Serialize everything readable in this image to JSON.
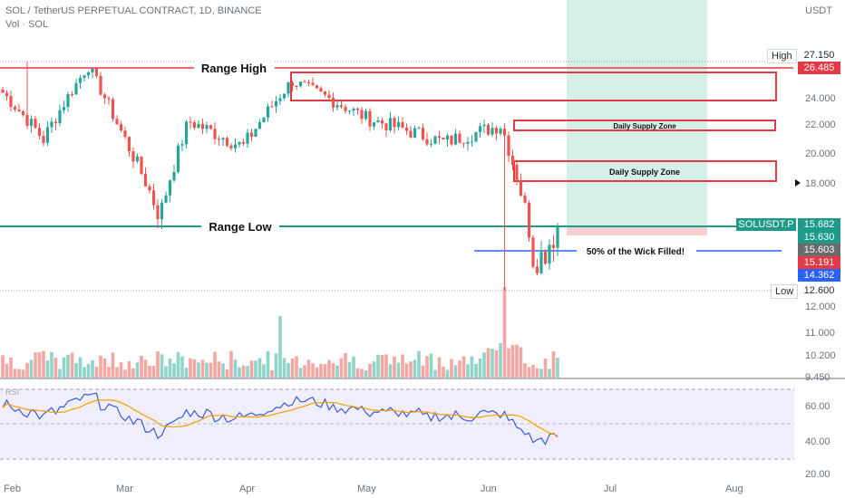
{
  "header": {
    "symbol_line": "SOL / TetherUS PERPETUAL CONTRACT, 1D, BINANCE",
    "vol_line": "Vol · SOL",
    "currency": "USDT"
  },
  "colors": {
    "up": "#26a69a",
    "down": "#ef5350",
    "vol_up": "#8fd3c9",
    "vol_down": "#f4a6a3",
    "zone": "#e53945",
    "range_low": "#1e9a8a",
    "wick_line": "#2962ff",
    "target_fill": "#d5efe9",
    "stop_fill": "#f8cfcf",
    "rsi_line": "#3b5bdb",
    "rsi_ma": "#f59f00",
    "rsi_bg": "#f1eefb"
  },
  "annotations": {
    "range_high": "Range High",
    "range_low": "Range Low",
    "supply_zone_1": "Daily Supply Zone",
    "supply_zone_2": "Daily Supply Zone",
    "wick_note": "50% of the Wick Filled!"
  },
  "price_tags": {
    "high_label": "High",
    "high_value": "27.150",
    "range_high_value": "26.485",
    "symbol_tag": "SOLUSDT.P",
    "last_price": "15.682",
    "tag2": "15.630",
    "tag3": "15.603",
    "tag4": "15.191",
    "tag5": "14.362",
    "low_label": "Low",
    "low_value": "12.600"
  },
  "rsi_label": "RSI",
  "chart_data": {
    "type": "candlestick",
    "x_labels": [
      "Feb",
      "Mar",
      "Apr",
      "May",
      "Jun",
      "Jul",
      "Aug"
    ],
    "y_ticks": [
      "24.000",
      "22.000",
      "20.000",
      "18.000",
      "12.000",
      "11.000",
      "10.200",
      "9.450"
    ],
    "rsi_ticks": [
      "60.00",
      "40.00",
      "20.00"
    ],
    "levels": {
      "range_high": 26.485,
      "range_low": 15.68,
      "supply_zone_upper": [
        23.7,
        25.6
      ],
      "supply_zone_mid": [
        21.5,
        22.2
      ],
      "supply_zone_lower": [
        18.3,
        19.5
      ],
      "wick_50pct": 14.05,
      "period_high": 27.15,
      "period_low": 12.6
    },
    "ohlc_key": [
      {
        "date": "Feb",
        "close": 24.5
      },
      {
        "date": "Feb-mid",
        "close": 21.0
      },
      {
        "date": "Feb-end",
        "close": 26.8
      },
      {
        "date": "Mar",
        "close": 22.0
      },
      {
        "date": "Mar-mid",
        "close": 16.2
      },
      {
        "date": "Mar-end",
        "close": 22.3
      },
      {
        "date": "Apr",
        "close": 20.5
      },
      {
        "date": "Apr-mid",
        "close": 25.5
      },
      {
        "date": "May",
        "close": 22.5
      },
      {
        "date": "May-mid",
        "close": 20.8
      },
      {
        "date": "Jun",
        "close": 22.0
      },
      {
        "date": "Jun-drop",
        "close": 18.5
      },
      {
        "date": "Jun-low",
        "close": 14.4
      },
      {
        "date": "Jun-last",
        "close": 15.68
      }
    ]
  }
}
